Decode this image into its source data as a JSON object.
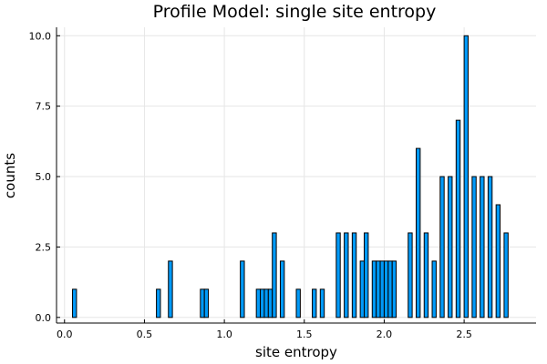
{
  "chart_data": {
    "type": "bar",
    "title": "Profile Model: single site entropy",
    "xlabel": "site entropy",
    "ylabel": "counts",
    "xlim": [
      -0.05,
      2.95
    ],
    "ylim": [
      -0.2,
      10.3
    ],
    "x_ticks": [
      {
        "value": 0.0,
        "label": "0.0"
      },
      {
        "value": 0.5,
        "label": "0.5"
      },
      {
        "value": 1.0,
        "label": "1.0"
      },
      {
        "value": 1.5,
        "label": "1.5"
      },
      {
        "value": 2.0,
        "label": "2.0"
      },
      {
        "value": 2.5,
        "label": "2.5"
      }
    ],
    "y_ticks": [
      {
        "value": 0.0,
        "label": "0.0"
      },
      {
        "value": 2.5,
        "label": "2.5"
      },
      {
        "value": 5.0,
        "label": "5.0"
      },
      {
        "value": 7.5,
        "label": "7.5"
      },
      {
        "value": 10.0,
        "label": "10.0"
      }
    ],
    "bin_width": 0.025,
    "bins": [
      {
        "start": 0.05,
        "count": 1
      },
      {
        "start": 0.575,
        "count": 1
      },
      {
        "start": 0.65,
        "count": 2
      },
      {
        "start": 0.85,
        "count": 1
      },
      {
        "start": 0.875,
        "count": 1
      },
      {
        "start": 1.1,
        "count": 2
      },
      {
        "start": 1.2,
        "count": 1
      },
      {
        "start": 1.225,
        "count": 1
      },
      {
        "start": 1.25,
        "count": 1
      },
      {
        "start": 1.275,
        "count": 1
      },
      {
        "start": 1.3,
        "count": 3
      },
      {
        "start": 1.35,
        "count": 2
      },
      {
        "start": 1.45,
        "count": 1
      },
      {
        "start": 1.55,
        "count": 1
      },
      {
        "start": 1.6,
        "count": 1
      },
      {
        "start": 1.7,
        "count": 3
      },
      {
        "start": 1.75,
        "count": 3
      },
      {
        "start": 1.8,
        "count": 3
      },
      {
        "start": 1.85,
        "count": 2
      },
      {
        "start": 1.875,
        "count": 3
      },
      {
        "start": 1.925,
        "count": 2
      },
      {
        "start": 1.95,
        "count": 2
      },
      {
        "start": 1.975,
        "count": 2
      },
      {
        "start": 2.0,
        "count": 2
      },
      {
        "start": 2.025,
        "count": 2
      },
      {
        "start": 2.05,
        "count": 2
      },
      {
        "start": 2.15,
        "count": 3
      },
      {
        "start": 2.2,
        "count": 6
      },
      {
        "start": 2.25,
        "count": 3
      },
      {
        "start": 2.3,
        "count": 2
      },
      {
        "start": 2.35,
        "count": 5
      },
      {
        "start": 2.4,
        "count": 5
      },
      {
        "start": 2.45,
        "count": 7
      },
      {
        "start": 2.5,
        "count": 10
      },
      {
        "start": 2.55,
        "count": 5
      },
      {
        "start": 2.6,
        "count": 5
      },
      {
        "start": 2.65,
        "count": 5
      },
      {
        "start": 2.7,
        "count": 4
      },
      {
        "start": 2.75,
        "count": 3
      }
    ],
    "grid": true,
    "legend": "none",
    "colors": {
      "bar_fill": "#009af9",
      "bar_stroke": "#000000",
      "grid": "#e6e6e6"
    }
  }
}
